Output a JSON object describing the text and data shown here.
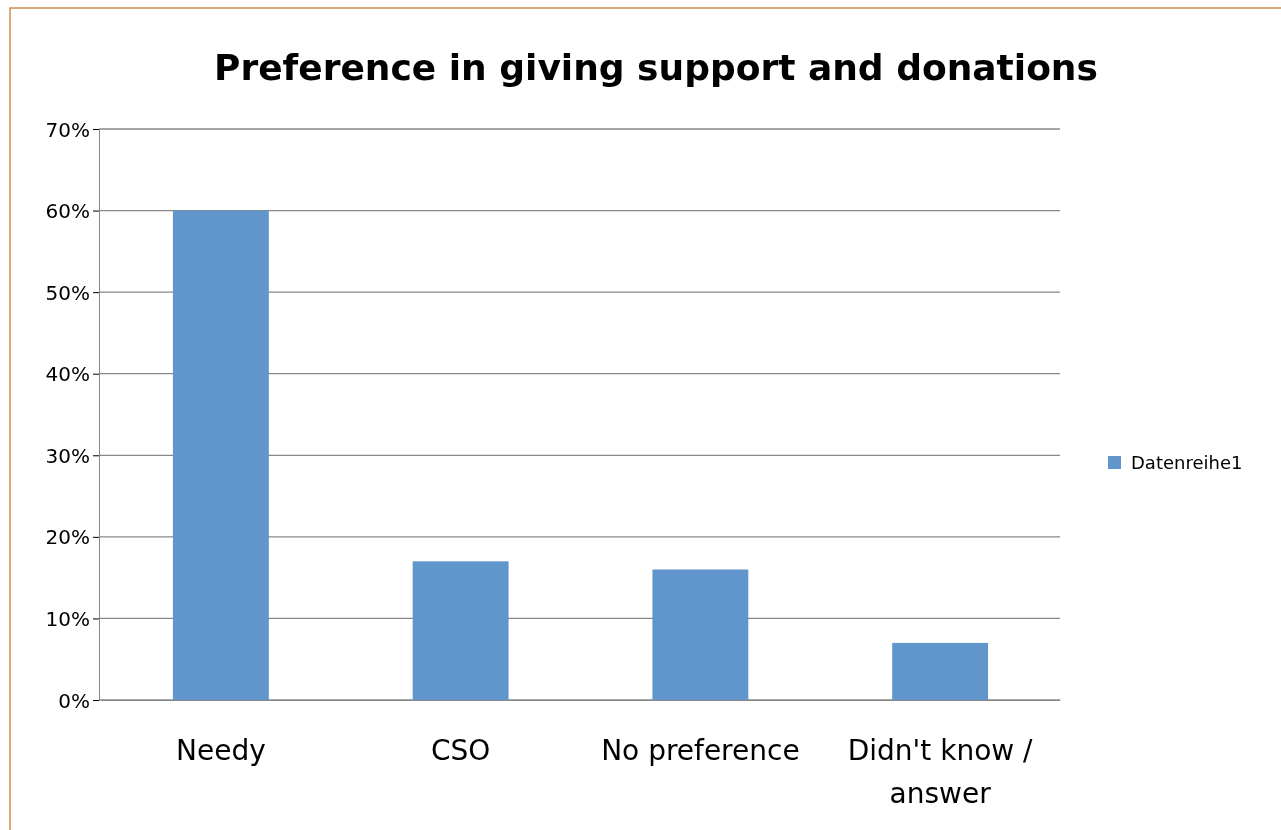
{
  "chart_data": {
    "type": "bar",
    "title": "Preference in giving support and donations",
    "categories": [
      "Needy",
      "CSO",
      "No preference",
      "Didn't know / answer"
    ],
    "series": [
      {
        "name": "Datenreihe1",
        "color": "#6096cb",
        "values": [
          60,
          17,
          16,
          7
        ]
      }
    ],
    "ylim": [
      0,
      70
    ],
    "yticks": [
      {
        "value": 0,
        "label": "0%"
      },
      {
        "value": 10,
        "label": "10%"
      },
      {
        "value": 20,
        "label": "20%"
      },
      {
        "value": 30,
        "label": "30%"
      },
      {
        "value": 40,
        "label": "40%"
      },
      {
        "value": 50,
        "label": "50%"
      },
      {
        "value": 60,
        "label": "60%"
      },
      {
        "value": 70,
        "label": "70%"
      }
    ],
    "grid": "y",
    "legend": "right"
  }
}
